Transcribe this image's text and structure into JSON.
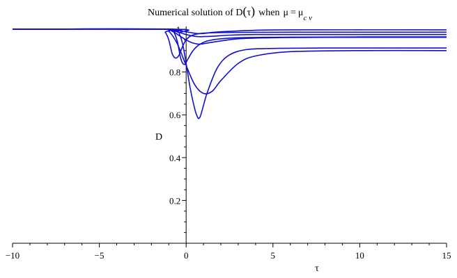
{
  "chart_data": {
    "type": "line",
    "title": {
      "prefix": "Numerical solution of D",
      "arg": "τ",
      "when": "when",
      "mu": "μ",
      "equals": "=",
      "mu2": "μ",
      "subscript": "c v"
    },
    "xlabel": "τ",
    "ylabel": "D",
    "xlim": [
      -10,
      15
    ],
    "ylim": [
      0,
      1.0
    ],
    "x_ticks": [
      {
        "value": -10,
        "label": "−10"
      },
      {
        "value": -5,
        "label": "−5"
      },
      {
        "value": 0,
        "label": "0"
      },
      {
        "value": 5,
        "label": "5"
      },
      {
        "value": 10,
        "label": "10"
      },
      {
        "value": 15,
        "label": "15"
      }
    ],
    "y_ticks": [
      {
        "value": 0.2,
        "label": "0.2"
      },
      {
        "value": 0.4,
        "label": "0.4"
      },
      {
        "value": 0.6,
        "label": "0.6"
      },
      {
        "value": 0.8,
        "label": "0.8"
      },
      {
        "value": 1.0,
        "label": "1"
      }
    ],
    "grid": false,
    "line_color": "#1010d0",
    "series": [
      {
        "x": [
          -10,
          -1.5,
          -1.2,
          -1.0,
          -0.8,
          -0.6,
          -0.4,
          -0.2,
          0.0,
          0.3,
          0.8,
          1.5,
          3.0,
          6.0,
          10.0,
          15.0
        ],
        "y": [
          1.0,
          1.0,
          0.985,
          0.95,
          0.885,
          0.865,
          0.88,
          0.92,
          0.95,
          0.97,
          0.98,
          0.983,
          0.985,
          0.986,
          0.986,
          0.986
        ]
      },
      {
        "x": [
          -10,
          -1.0,
          -0.7,
          -0.5,
          -0.3,
          -0.1,
          0.1,
          0.4,
          0.8,
          1.5,
          3.0,
          6.0,
          10.0,
          15.0
        ],
        "y": [
          1.0,
          1.0,
          0.985,
          0.94,
          0.86,
          0.835,
          0.86,
          0.9,
          0.93,
          0.95,
          0.96,
          0.963,
          0.964,
          0.964
        ]
      },
      {
        "x": [
          -10,
          -0.6,
          -0.4,
          -0.2,
          0.0,
          0.2,
          0.4,
          0.6,
          0.8,
          1.2,
          1.8,
          2.5,
          3.5,
          5.0,
          8.0,
          15.0
        ],
        "y": [
          1.0,
          1.0,
          0.98,
          0.93,
          0.84,
          0.74,
          0.66,
          0.6,
          0.59,
          0.7,
          0.82,
          0.88,
          0.905,
          0.91,
          0.912,
          0.912
        ]
      },
      {
        "x": [
          -10,
          -1.5,
          -1.0,
          -0.5,
          0.0,
          0.5,
          1.0,
          1.5,
          2.0,
          3.0,
          4.0,
          6.0,
          10.0,
          15.0
        ],
        "y": [
          1.0,
          1.0,
          0.99,
          0.93,
          0.83,
          0.74,
          0.7,
          0.71,
          0.76,
          0.84,
          0.875,
          0.895,
          0.9,
          0.9
        ]
      },
      {
        "x": [
          -10,
          -1.5,
          -0.8,
          -0.4,
          0.0,
          0.4,
          0.8,
          1.2,
          2.0,
          3.0,
          5.0,
          8.0,
          15.0
        ],
        "y": [
          1.0,
          1.0,
          0.99,
          0.97,
          0.95,
          0.935,
          0.93,
          0.935,
          0.945,
          0.955,
          0.96,
          0.962,
          0.962
        ]
      },
      {
        "x": [
          -10,
          -1.2,
          -0.8,
          -0.4,
          0.0,
          0.4,
          0.8,
          1.5,
          2.5,
          4.0,
          7.0,
          15.0
        ],
        "y": [
          1.0,
          1.0,
          0.995,
          0.985,
          0.975,
          0.968,
          0.965,
          0.967,
          0.972,
          0.975,
          0.975,
          0.975
        ]
      },
      {
        "x": [
          -10,
          -1.2,
          -0.6,
          -0.2,
          0.2,
          0.6,
          1.0,
          1.5,
          2.5,
          4.0,
          6.0,
          15.0
        ],
        "y": [
          1.0,
          1.0,
          0.995,
          0.99,
          0.985,
          0.98,
          0.98,
          0.985,
          0.99,
          0.995,
          0.997,
          0.997
        ]
      }
    ]
  }
}
